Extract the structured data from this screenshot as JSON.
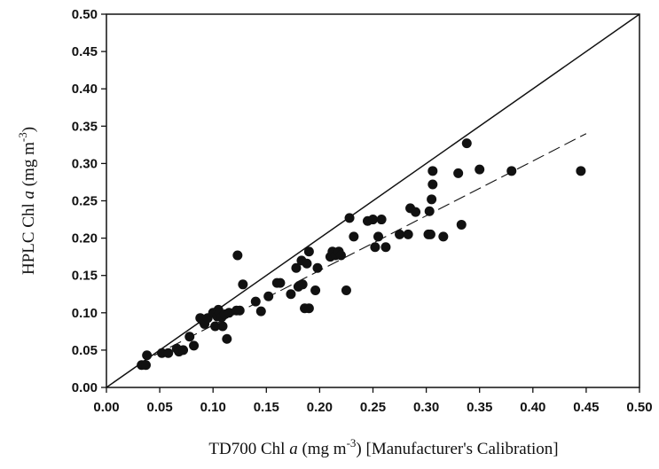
{
  "chart_data": {
    "type": "scatter",
    "title": "",
    "xlabel": {
      "prefix": "TD700 Chl ",
      "italic": "a",
      "unit": " (mg m",
      "sup": "-3",
      "suffix": ") [Manufacturer's Calibration]"
    },
    "ylabel": {
      "prefix": "HPLC Chl ",
      "italic": "a",
      "unit": " (mg m",
      "sup": "-3",
      "close": ")"
    },
    "xlim": [
      0,
      0.5
    ],
    "ylim": [
      0,
      0.5
    ],
    "x_ticks": [
      "0.00",
      "0.05",
      "0.10",
      "0.15",
      "0.20",
      "0.25",
      "0.30",
      "0.35",
      "0.40",
      "0.45",
      "0.50"
    ],
    "y_ticks": [
      "0.00",
      "0.05",
      "0.10",
      "0.15",
      "0.20",
      "0.25",
      "0.30",
      "0.35",
      "0.40",
      "0.45",
      "0.50"
    ],
    "grid": false,
    "legend": "none",
    "lines": [
      {
        "style": "solid",
        "x": [
          0,
          0.5
        ],
        "y": [
          0,
          0.5
        ]
      },
      {
        "style": "dashed",
        "x": [
          0.03,
          0.45
        ],
        "y": [
          0.032,
          0.34
        ]
      }
    ],
    "points": [
      {
        "x": 0.033,
        "y": 0.03
      },
      {
        "x": 0.037,
        "y": 0.03
      },
      {
        "x": 0.038,
        "y": 0.043
      },
      {
        "x": 0.052,
        "y": 0.046
      },
      {
        "x": 0.058,
        "y": 0.046
      },
      {
        "x": 0.066,
        "y": 0.052
      },
      {
        "x": 0.068,
        "y": 0.048
      },
      {
        "x": 0.072,
        "y": 0.05
      },
      {
        "x": 0.078,
        "y": 0.068
      },
      {
        "x": 0.082,
        "y": 0.056
      },
      {
        "x": 0.088,
        "y": 0.093
      },
      {
        "x": 0.09,
        "y": 0.09
      },
      {
        "x": 0.092,
        "y": 0.085
      },
      {
        "x": 0.095,
        "y": 0.093
      },
      {
        "x": 0.1,
        "y": 0.1
      },
      {
        "x": 0.102,
        "y": 0.082
      },
      {
        "x": 0.104,
        "y": 0.095
      },
      {
        "x": 0.105,
        "y": 0.104
      },
      {
        "x": 0.106,
        "y": 0.1
      },
      {
        "x": 0.108,
        "y": 0.094
      },
      {
        "x": 0.109,
        "y": 0.082
      },
      {
        "x": 0.111,
        "y": 0.098
      },
      {
        "x": 0.113,
        "y": 0.065
      },
      {
        "x": 0.115,
        "y": 0.1
      },
      {
        "x": 0.122,
        "y": 0.103
      },
      {
        "x": 0.123,
        "y": 0.177
      },
      {
        "x": 0.125,
        "y": 0.103
      },
      {
        "x": 0.128,
        "y": 0.138
      },
      {
        "x": 0.14,
        "y": 0.115
      },
      {
        "x": 0.145,
        "y": 0.102
      },
      {
        "x": 0.152,
        "y": 0.122
      },
      {
        "x": 0.16,
        "y": 0.14
      },
      {
        "x": 0.163,
        "y": 0.14
      },
      {
        "x": 0.173,
        "y": 0.125
      },
      {
        "x": 0.178,
        "y": 0.16
      },
      {
        "x": 0.18,
        "y": 0.135
      },
      {
        "x": 0.183,
        "y": 0.17
      },
      {
        "x": 0.184,
        "y": 0.138
      },
      {
        "x": 0.186,
        "y": 0.106
      },
      {
        "x": 0.188,
        "y": 0.166
      },
      {
        "x": 0.19,
        "y": 0.182
      },
      {
        "x": 0.19,
        "y": 0.106
      },
      {
        "x": 0.196,
        "y": 0.13
      },
      {
        "x": 0.198,
        "y": 0.16
      },
      {
        "x": 0.21,
        "y": 0.175
      },
      {
        "x": 0.212,
        "y": 0.182
      },
      {
        "x": 0.215,
        "y": 0.177
      },
      {
        "x": 0.218,
        "y": 0.182
      },
      {
        "x": 0.22,
        "y": 0.177
      },
      {
        "x": 0.225,
        "y": 0.13
      },
      {
        "x": 0.228,
        "y": 0.227
      },
      {
        "x": 0.232,
        "y": 0.202
      },
      {
        "x": 0.245,
        "y": 0.223
      },
      {
        "x": 0.25,
        "y": 0.225
      },
      {
        "x": 0.252,
        "y": 0.188
      },
      {
        "x": 0.255,
        "y": 0.202
      },
      {
        "x": 0.258,
        "y": 0.225
      },
      {
        "x": 0.262,
        "y": 0.188
      },
      {
        "x": 0.275,
        "y": 0.205
      },
      {
        "x": 0.283,
        "y": 0.205
      },
      {
        "x": 0.285,
        "y": 0.24
      },
      {
        "x": 0.29,
        "y": 0.235
      },
      {
        "x": 0.302,
        "y": 0.205
      },
      {
        "x": 0.303,
        "y": 0.236
      },
      {
        "x": 0.304,
        "y": 0.205
      },
      {
        "x": 0.305,
        "y": 0.252
      },
      {
        "x": 0.306,
        "y": 0.272
      },
      {
        "x": 0.306,
        "y": 0.29
      },
      {
        "x": 0.316,
        "y": 0.202
      },
      {
        "x": 0.33,
        "y": 0.287
      },
      {
        "x": 0.333,
        "y": 0.218
      },
      {
        "x": 0.338,
        "y": 0.327
      },
      {
        "x": 0.35,
        "y": 0.292
      },
      {
        "x": 0.38,
        "y": 0.29
      },
      {
        "x": 0.445,
        "y": 0.29
      }
    ]
  }
}
